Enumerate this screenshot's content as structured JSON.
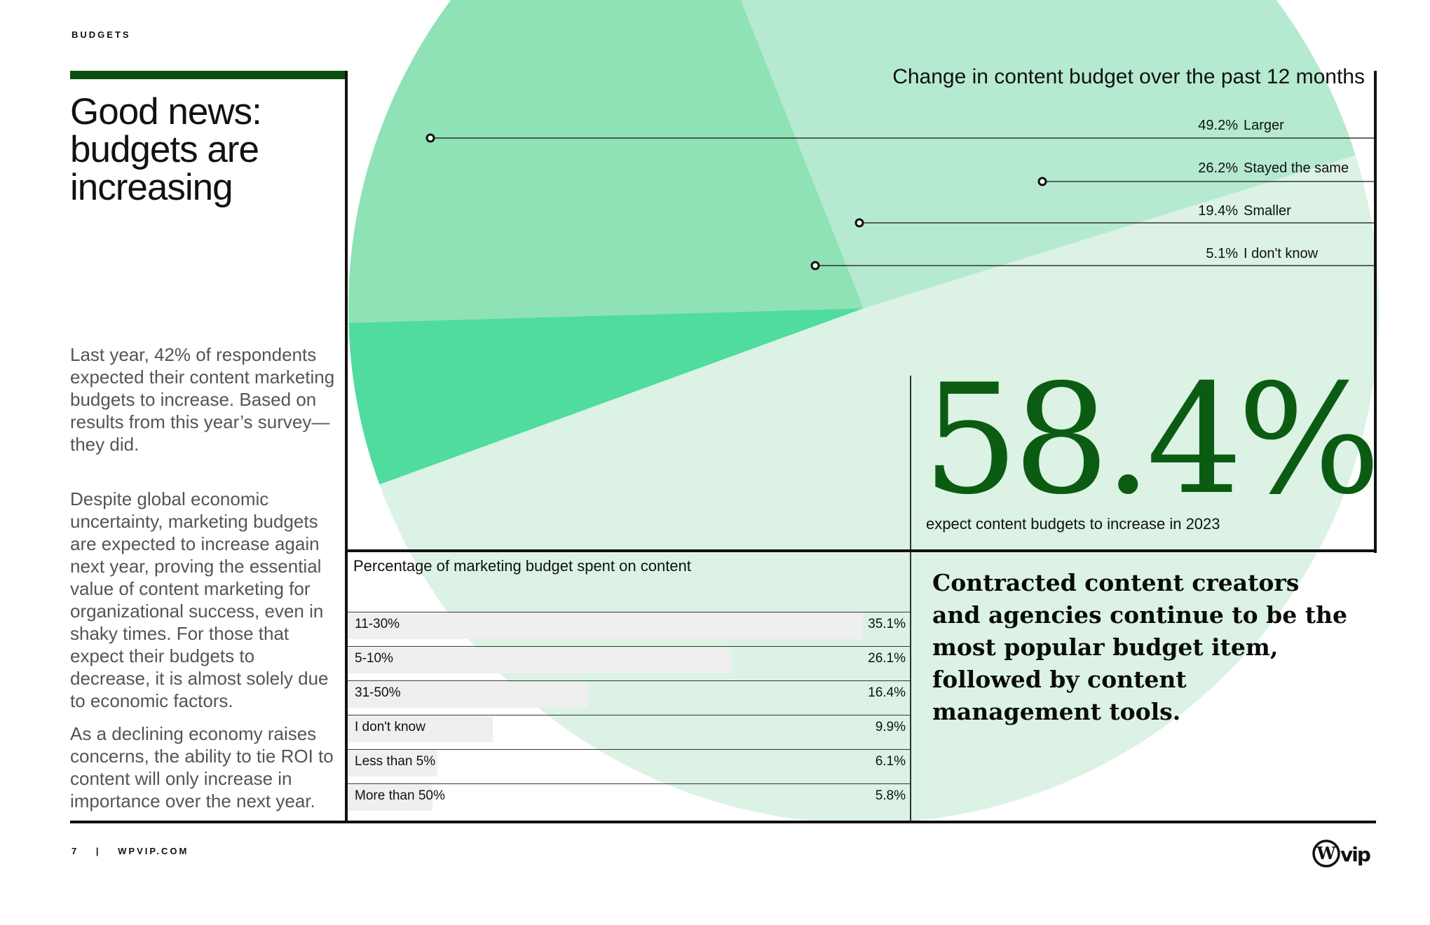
{
  "header": {
    "section": "BUDGETS"
  },
  "headline": "Good news: budgets are increasing",
  "body": [
    "Last year, 42% of respondents expected their content marketing budgets to increase. Based on results from this year’s survey— they did.",
    "Despite global economic uncertainty, marketing budgets are expected to increase again next year, proving the essential value of content marketing for organizational success, even in shaky times. For those that expect their budgets to decrease, it is almost solely due to economic factors.",
    "As a declining economy raises concerns, the ability to tie ROI to content will only increase in importance over the next year."
  ],
  "stat": {
    "value": "58.4%",
    "caption": "expect content budgets to increase in 2023"
  },
  "quote": "Contracted content creators and agencies continue to be the most popular budget item, followed by content management tools.",
  "footer": {
    "page": "7",
    "separator": "|",
    "site": "WPVIP.COM",
    "logo": "vip"
  },
  "colors": {
    "dark_green": "#0b5c12",
    "pie": [
      "#dbf2e5",
      "#b5ead0",
      "#8fe1b6",
      "#50dc9f"
    ]
  },
  "chart_data": [
    {
      "type": "pie",
      "title": "Change in content budget over the past 12 months",
      "series": [
        {
          "label": "Larger",
          "value": 49.2,
          "display": "49.2%"
        },
        {
          "label": "Stayed the same",
          "value": 26.2,
          "display": "26.2%"
        },
        {
          "label": "Smaller",
          "value": 19.4,
          "display": "19.4%"
        },
        {
          "label": "I don't know",
          "value": 5.1,
          "display": "5.1%"
        }
      ]
    },
    {
      "type": "bar",
      "title": "Percentage of marketing budget spent on content",
      "categories": [
        "11-30%",
        "5-10%",
        "31-50%",
        "I don't know",
        "Less than 5%",
        "More than 50%"
      ],
      "values": [
        35.1,
        26.1,
        16.4,
        9.9,
        6.1,
        5.8
      ],
      "display": [
        "35.1%",
        "26.1%",
        "16.4%",
        "9.9%",
        "6.1%",
        "5.8%"
      ]
    }
  ]
}
